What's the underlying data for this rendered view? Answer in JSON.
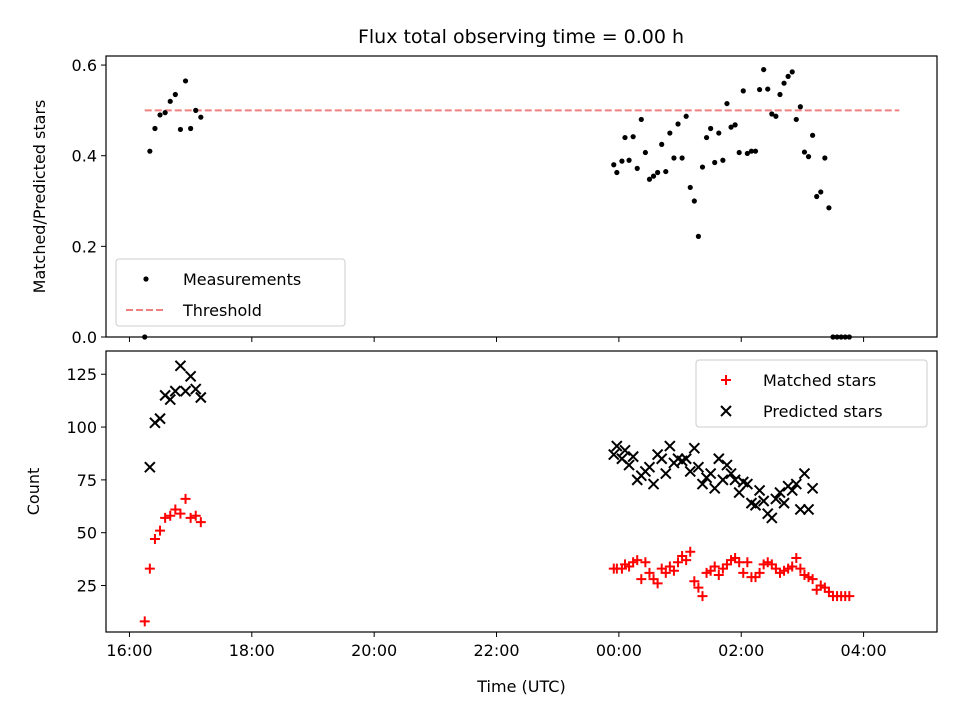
{
  "title": "Flux total observing time = 0.00 h",
  "chart_data": [
    {
      "type": "scatter",
      "ylabel": "Matched/Predicted stars",
      "ylim": [
        0,
        0.62
      ],
      "yticks": [
        "0.0",
        "0.2",
        "0.4",
        "0.6"
      ],
      "legend_position": "lower-left",
      "threshold": {
        "name": "Threshold",
        "y": 0.5,
        "x_start": "16:15",
        "x_end": "04:35",
        "color": "#f08080"
      },
      "series": [
        {
          "name": "Measurements",
          "color": "#000000",
          "marker": "dot",
          "points": [
            [
              "16:15",
              0.0
            ],
            [
              "16:20",
              0.41
            ],
            [
              "16:25",
              0.46
            ],
            [
              "16:30",
              0.49
            ],
            [
              "16:35",
              0.495
            ],
            [
              "16:40",
              0.52
            ],
            [
              "16:45",
              0.535
            ],
            [
              "16:50",
              0.458
            ],
            [
              "16:55",
              0.565
            ],
            [
              "17:00",
              0.46
            ],
            [
              "17:05",
              0.5
            ],
            [
              "17:10",
              0.485
            ],
            [
              "23:55",
              0.38
            ],
            [
              "23:58",
              0.363
            ],
            [
              "00:03",
              0.388
            ],
            [
              "00:06",
              0.44
            ],
            [
              "00:10",
              0.39
            ],
            [
              "00:14",
              0.442
            ],
            [
              "00:18",
              0.372
            ],
            [
              "00:22",
              0.48
            ],
            [
              "00:26",
              0.407
            ],
            [
              "00:30",
              0.348
            ],
            [
              "00:34",
              0.355
            ],
            [
              "00:38",
              0.363
            ],
            [
              "00:42",
              0.425
            ],
            [
              "00:46",
              0.365
            ],
            [
              "00:50",
              0.45
            ],
            [
              "00:54",
              0.395
            ],
            [
              "00:58",
              0.47
            ],
            [
              "01:02",
              0.395
            ],
            [
              "01:06",
              0.487
            ],
            [
              "01:10",
              0.33
            ],
            [
              "01:14",
              0.3
            ],
            [
              "01:18",
              0.222
            ],
            [
              "01:22",
              0.375
            ],
            [
              "01:26",
              0.44
            ],
            [
              "01:30",
              0.46
            ],
            [
              "01:34",
              0.385
            ],
            [
              "01:38",
              0.45
            ],
            [
              "01:42",
              0.39
            ],
            [
              "01:46",
              0.515
            ],
            [
              "01:50",
              0.463
            ],
            [
              "01:54",
              0.468
            ],
            [
              "01:58",
              0.407
            ],
            [
              "02:02",
              0.543
            ],
            [
              "02:06",
              0.405
            ],
            [
              "02:10",
              0.41
            ],
            [
              "02:14",
              0.41
            ],
            [
              "02:18",
              0.546
            ],
            [
              "02:22",
              0.59
            ],
            [
              "02:26",
              0.547
            ],
            [
              "02:30",
              0.492
            ],
            [
              "02:34",
              0.487
            ],
            [
              "02:38",
              0.535
            ],
            [
              "02:42",
              0.56
            ],
            [
              "02:46",
              0.575
            ],
            [
              "02:50",
              0.585
            ],
            [
              "02:54",
              0.48
            ],
            [
              "02:58",
              0.508
            ],
            [
              "03:02",
              0.408
            ],
            [
              "03:06",
              0.398
            ],
            [
              "03:10",
              0.445
            ],
            [
              "03:14",
              0.31
            ],
            [
              "03:18",
              0.32
            ],
            [
              "03:22",
              0.395
            ],
            [
              "03:26",
              0.285
            ],
            [
              "03:30",
              0.0
            ],
            [
              "03:34",
              0.0
            ],
            [
              "03:38",
              0.0
            ],
            [
              "03:42",
              0.0
            ],
            [
              "03:46",
              0.0
            ]
          ]
        }
      ]
    },
    {
      "type": "scatter",
      "xlabel": "Time (UTC)",
      "ylabel": "Count",
      "ylim": [
        3,
        136
      ],
      "yticks": [
        "25",
        "50",
        "75",
        "100",
        "125"
      ],
      "xticks": [
        "16:00",
        "18:00",
        "20:00",
        "22:00",
        "00:00",
        "02:00",
        "04:00"
      ],
      "legend_position": "top-right",
      "series": [
        {
          "name": "Matched stars",
          "color": "#ff0000",
          "marker": "plus",
          "points": [
            [
              "16:15",
              8
            ],
            [
              "16:20",
              33
            ],
            [
              "16:25",
              47
            ],
            [
              "16:30",
              51
            ],
            [
              "16:35",
              57
            ],
            [
              "16:40",
              58
            ],
            [
              "16:45",
              61
            ],
            [
              "16:50",
              59
            ],
            [
              "16:55",
              66
            ],
            [
              "17:00",
              57
            ],
            [
              "17:05",
              58
            ],
            [
              "17:10",
              55
            ],
            [
              "23:55",
              33
            ],
            [
              "23:58",
              33
            ],
            [
              "00:03",
              33
            ],
            [
              "00:06",
              35
            ],
            [
              "00:10",
              34
            ],
            [
              "00:14",
              36
            ],
            [
              "00:18",
              37
            ],
            [
              "00:22",
              28
            ],
            [
              "00:26",
              36
            ],
            [
              "00:30",
              31
            ],
            [
              "00:34",
              28
            ],
            [
              "00:38",
              26
            ],
            [
              "00:42",
              33
            ],
            [
              "00:46",
              31
            ],
            [
              "00:50",
              34
            ],
            [
              "00:54",
              32
            ],
            [
              "00:58",
              36
            ],
            [
              "01:02",
              39
            ],
            [
              "01:06",
              37
            ],
            [
              "01:10",
              41
            ],
            [
              "01:14",
              27
            ],
            [
              "01:18",
              24
            ],
            [
              "01:22",
              20
            ],
            [
              "01:26",
              31
            ],
            [
              "01:30",
              32
            ],
            [
              "01:34",
              34
            ],
            [
              "01:38",
              30
            ],
            [
              "01:42",
              33
            ],
            [
              "01:46",
              35
            ],
            [
              "01:50",
              37
            ],
            [
              "01:54",
              38
            ],
            [
              "01:58",
              36
            ],
            [
              "02:02",
              31
            ],
            [
              "02:06",
              36
            ],
            [
              "02:10",
              29
            ],
            [
              "02:14",
              29
            ],
            [
              "02:18",
              31
            ],
            [
              "02:22",
              35
            ],
            [
              "02:26",
              36
            ],
            [
              "02:30",
              35
            ],
            [
              "02:34",
              33
            ],
            [
              "02:38",
              31
            ],
            [
              "02:42",
              32
            ],
            [
              "02:46",
              33
            ],
            [
              "02:50",
              34
            ],
            [
              "02:54",
              38
            ],
            [
              "02:58",
              33
            ],
            [
              "03:02",
              30
            ],
            [
              "03:06",
              29
            ],
            [
              "03:10",
              28
            ],
            [
              "03:14",
              23
            ],
            [
              "03:18",
              25
            ],
            [
              "03:22",
              24
            ],
            [
              "03:26",
              22
            ],
            [
              "03:30",
              20
            ],
            [
              "03:34",
              20
            ],
            [
              "03:38",
              20
            ],
            [
              "03:42",
              20
            ],
            [
              "03:46",
              20
            ]
          ]
        },
        {
          "name": "Predicted stars",
          "color": "#000000",
          "marker": "x",
          "points": [
            [
              "16:20",
              81
            ],
            [
              "16:25",
              102
            ],
            [
              "16:30",
              104
            ],
            [
              "16:35",
              115
            ],
            [
              "16:40",
              113
            ],
            [
              "16:45",
              117
            ],
            [
              "16:50",
              129
            ],
            [
              "16:55",
              117
            ],
            [
              "17:00",
              124
            ],
            [
              "17:05",
              118
            ],
            [
              "17:10",
              114
            ],
            [
              "23:55",
              87
            ],
            [
              "23:58",
              91
            ],
            [
              "00:03",
              85
            ],
            [
              "00:06",
              89
            ],
            [
              "00:10",
              82
            ],
            [
              "00:14",
              86
            ],
            [
              "00:18",
              75
            ],
            [
              "00:22",
              77
            ],
            [
              "00:26",
              79
            ],
            [
              "00:30",
              81
            ],
            [
              "00:34",
              73
            ],
            [
              "00:38",
              87
            ],
            [
              "00:42",
              85
            ],
            [
              "00:46",
              78
            ],
            [
              "00:50",
              91
            ],
            [
              "00:54",
              83
            ],
            [
              "00:58",
              85
            ],
            [
              "01:02",
              84
            ],
            [
              "01:06",
              85
            ],
            [
              "01:10",
              79
            ],
            [
              "01:14",
              90
            ],
            [
              "01:18",
              81
            ],
            [
              "01:22",
              73
            ],
            [
              "01:26",
              76
            ],
            [
              "01:30",
              78
            ],
            [
              "01:34",
              71
            ],
            [
              "01:38",
              85
            ],
            [
              "01:42",
              75
            ],
            [
              "01:46",
              82
            ],
            [
              "01:50",
              78
            ],
            [
              "01:54",
              75
            ],
            [
              "01:58",
              69
            ],
            [
              "02:02",
              74
            ],
            [
              "02:06",
              73
            ],
            [
              "02:10",
              64
            ],
            [
              "02:14",
              63
            ],
            [
              "02:18",
              70
            ],
            [
              "02:22",
              65
            ],
            [
              "02:26",
              59
            ],
            [
              "02:30",
              57
            ],
            [
              "02:34",
              66
            ],
            [
              "02:38",
              69
            ],
            [
              "02:42",
              64
            ],
            [
              "02:46",
              72
            ],
            [
              "02:50",
              70
            ],
            [
              "02:54",
              73
            ],
            [
              "02:58",
              61
            ],
            [
              "03:02",
              78
            ],
            [
              "03:06",
              61
            ],
            [
              "03:10",
              71
            ]
          ]
        }
      ]
    }
  ]
}
